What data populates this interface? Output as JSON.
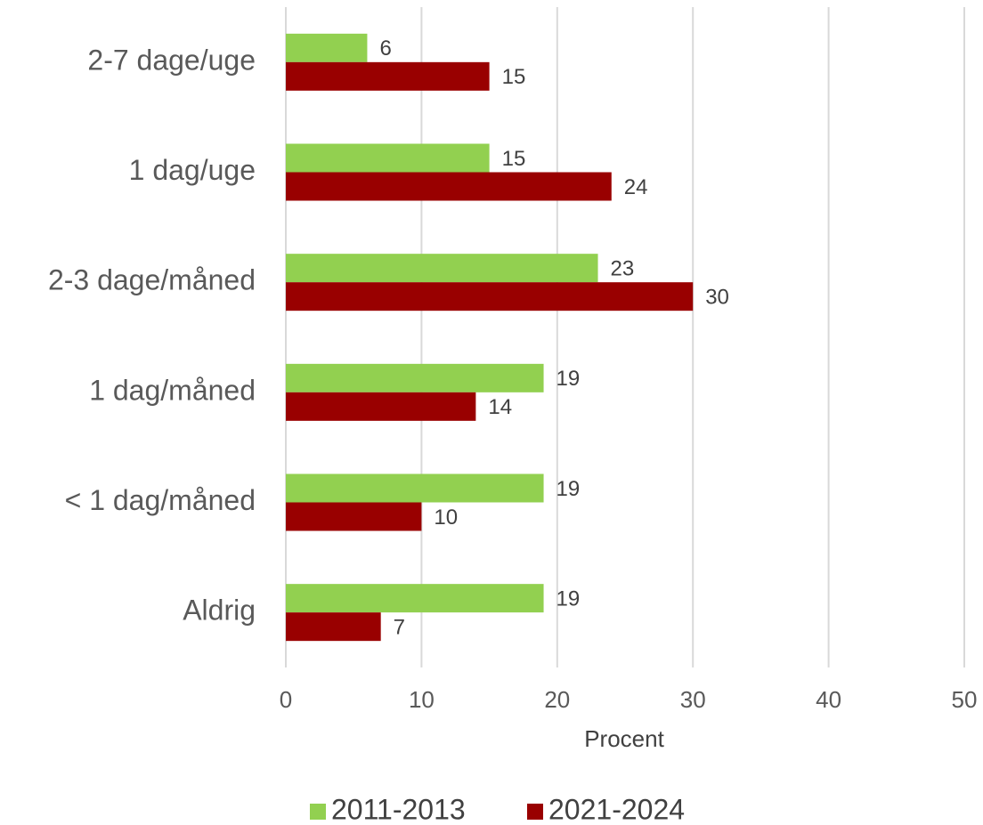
{
  "chart_data": {
    "type": "hbar",
    "categories": [
      "2-7 dage/uge",
      "1 dag/uge",
      "2-3 dage/måned",
      "1 dag/måned",
      "< 1 dag/måned",
      "Aldrig"
    ],
    "series": [
      {
        "name": "2011-2013",
        "color": "#92d050",
        "values": [
          6,
          15,
          23,
          19,
          19,
          19
        ]
      },
      {
        "name": "2021-2024",
        "color": "#990000",
        "values": [
          15,
          24,
          30,
          14,
          10,
          7
        ]
      }
    ],
    "xlabel": "Procent",
    "xlim": [
      0,
      50
    ],
    "xticks": [
      0,
      10,
      20,
      30,
      40,
      50
    ],
    "grid": true,
    "legend": "bottom"
  }
}
